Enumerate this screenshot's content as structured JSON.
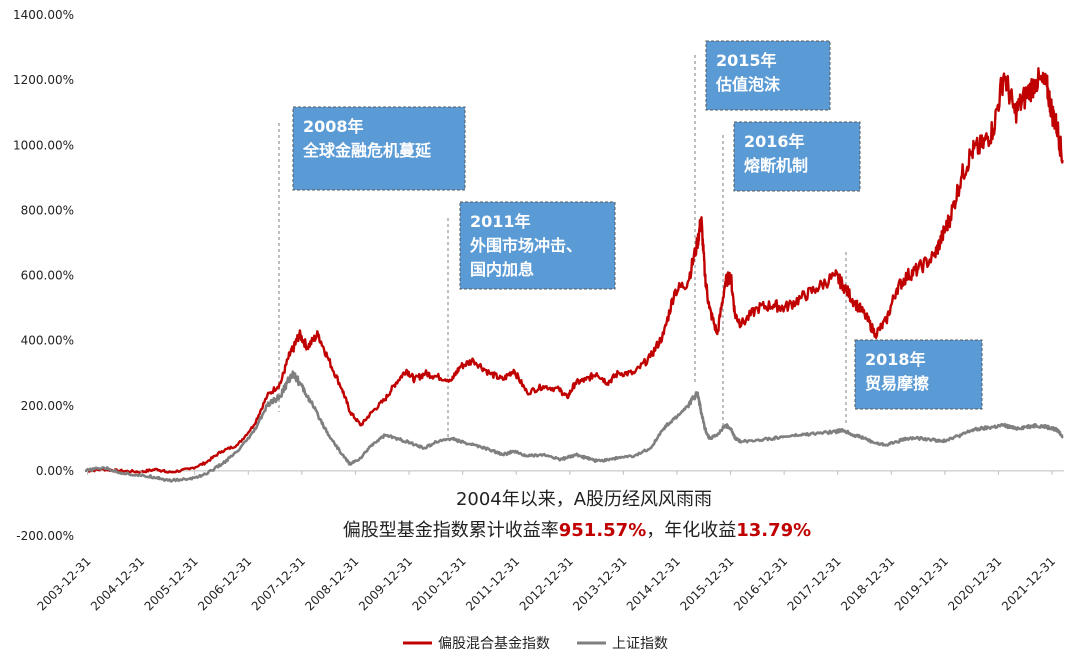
{
  "chart_data": {
    "type": "line",
    "y_axis": {
      "tick_labels": [
        "1400.00%",
        "1200.00%",
        "1000.00%",
        "800.00%",
        "600.00%",
        "400.00%",
        "200.00%",
        "0.00%",
        "-200.00%"
      ],
      "tick_values": [
        1400,
        1200,
        1000,
        800,
        600,
        400,
        200,
        0,
        -200
      ],
      "ylim": [
        -200,
        1400
      ],
      "unit": "%"
    },
    "x_axis": {
      "tick_labels": [
        "2003-12-31",
        "2004-12-31",
        "2005-12-31",
        "2006-12-31",
        "2007-12-31",
        "2008-12-31",
        "2009-12-31",
        "2010-12-31",
        "2011-12-31",
        "2012-12-31",
        "2013-12-31",
        "2014-12-31",
        "2015-12-31",
        "2016-12-31",
        "2017-12-31",
        "2018-12-31",
        "2019-12-31",
        "2020-12-31",
        "2021-12-31"
      ],
      "xlim": [
        2003.95,
        2022.22
      ]
    },
    "grid": false,
    "legend_position": "bottom",
    "series": [
      {
        "name": "偏股混合基金指数",
        "color": "#c00000",
        "x": [
          2003.95,
          2004.3,
          2004.6,
          2005.0,
          2005.3,
          2005.5,
          2005.9,
          2006.2,
          2006.5,
          2006.8,
          2007.1,
          2007.35,
          2007.6,
          2007.75,
          2007.85,
          2007.95,
          2008.1,
          2008.3,
          2008.5,
          2008.75,
          2008.9,
          2009.1,
          2009.3,
          2009.55,
          2009.75,
          2009.95,
          2010.1,
          2010.3,
          2010.5,
          2010.8,
          2010.95,
          2011.2,
          2011.5,
          2011.75,
          2011.95,
          2012.2,
          2012.5,
          2012.8,
          2012.95,
          2013.1,
          2013.3,
          2013.5,
          2013.7,
          2013.9,
          2014.2,
          2014.5,
          2014.75,
          2014.95,
          2015.2,
          2015.38,
          2015.45,
          2015.52,
          2015.6,
          2015.75,
          2015.9,
          2016.0,
          2016.08,
          2016.2,
          2016.5,
          2016.8,
          2017.0,
          2017.3,
          2017.6,
          2017.95,
          2018.1,
          2018.3,
          2018.5,
          2018.7,
          2018.9,
          2019.1,
          2019.3,
          2019.5,
          2019.8,
          2019.95,
          2020.1,
          2020.3,
          2020.5,
          2020.7,
          2020.9,
          2021.1,
          2021.3,
          2021.5,
          2021.7,
          2021.9,
          2022.0,
          2022.1,
          2022.2
        ],
        "values": [
          0,
          5,
          0,
          -3,
          5,
          -5,
          5,
          25,
          60,
          80,
          140,
          230,
          270,
          350,
          380,
          420,
          380,
          420,
          340,
          250,
          180,
          140,
          180,
          220,
          270,
          310,
          280,
          300,
          290,
          280,
          320,
          340,
          300,
          280,
          310,
          240,
          260,
          250,
          225,
          270,
          280,
          300,
          270,
          300,
          300,
          350,
          420,
          550,
          580,
          700,
          775,
          600,
          500,
          420,
          580,
          600,
          480,
          450,
          500,
          510,
          500,
          530,
          560,
          600,
          570,
          520,
          480,
          420,
          460,
          560,
          600,
          620,
          660,
          720,
          780,
          900,
          980,
          1000,
          1050,
          1220,
          1100,
          1150,
          1200,
          1180,
          1100,
          1050,
          950
        ]
      },
      {
        "name": "上证指数",
        "color": "#7f7f7f",
        "x": [
          2003.95,
          2004.3,
          2004.6,
          2005.0,
          2005.3,
          2005.5,
          2005.9,
          2006.2,
          2006.5,
          2006.8,
          2007.1,
          2007.35,
          2007.6,
          2007.75,
          2007.85,
          2007.95,
          2008.1,
          2008.3,
          2008.5,
          2008.75,
          2008.9,
          2009.1,
          2009.3,
          2009.55,
          2009.75,
          2009.95,
          2010.1,
          2010.3,
          2010.5,
          2010.8,
          2010.95,
          2011.2,
          2011.5,
          2011.75,
          2011.95,
          2012.2,
          2012.5,
          2012.8,
          2012.95,
          2013.1,
          2013.3,
          2013.5,
          2013.7,
          2013.9,
          2014.2,
          2014.5,
          2014.75,
          2014.95,
          2015.2,
          2015.38,
          2015.45,
          2015.52,
          2015.6,
          2015.75,
          2015.9,
          2016.0,
          2016.08,
          2016.2,
          2016.5,
          2016.8,
          2017.0,
          2017.3,
          2017.6,
          2017.95,
          2018.1,
          2018.3,
          2018.5,
          2018.7,
          2018.9,
          2019.1,
          2019.3,
          2019.5,
          2019.8,
          2019.95,
          2020.1,
          2020.3,
          2020.5,
          2020.7,
          2020.9,
          2021.1,
          2021.3,
          2021.5,
          2021.7,
          2021.9,
          2022.0,
          2022.1,
          2022.2
        ],
        "values": [
          0,
          10,
          -5,
          -15,
          -20,
          -30,
          -25,
          -10,
          20,
          60,
          120,
          200,
          230,
          280,
          300,
          270,
          230,
          170,
          110,
          50,
          20,
          40,
          80,
          110,
          100,
          90,
          80,
          70,
          90,
          100,
          90,
          80,
          65,
          50,
          60,
          45,
          50,
          35,
          40,
          50,
          40,
          30,
          35,
          40,
          45,
          70,
          130,
          160,
          200,
          240,
          180,
          130,
          100,
          110,
          140,
          130,
          100,
          90,
          95,
          100,
          105,
          110,
          115,
          120,
          125,
          110,
          100,
          85,
          80,
          90,
          100,
          100,
          95,
          90,
          100,
          110,
          125,
          130,
          135,
          140,
          130,
          135,
          140,
          135,
          130,
          125,
          105
        ]
      }
    ],
    "annotations": [
      {
        "lines": [
          "2008年",
          "全球金融危机蔓延"
        ],
        "x": 2007.95
      },
      {
        "lines": [
          "2011年",
          "外围市场冲击、",
          "国内加息"
        ],
        "x": 2010.8
      },
      {
        "lines": [
          "2015年",
          "估值泡沫"
        ],
        "x": 2015.4
      },
      {
        "lines": [
          "2016年",
          "熔断机制"
        ],
        "x": 2015.9
      },
      {
        "lines": [
          "2018年",
          "贸易摩擦"
        ],
        "x": 2018.2
      }
    ],
    "caption": {
      "line1": "2004年以来，A股历经风风雨雨",
      "line2_prefix": "偏股型基金指数累计收益率",
      "line2_value1": "951.57%",
      "line2_middle": "，年化收益",
      "line2_value2": "13.79%"
    }
  }
}
